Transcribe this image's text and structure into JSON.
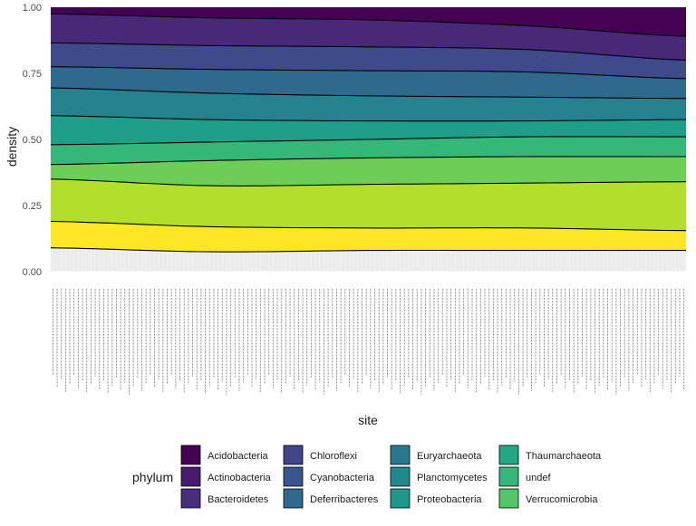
{
  "chart_data": {
    "type": "area",
    "stacked": "fill",
    "xlabel": "site",
    "ylabel": "density",
    "ylim": [
      0,
      1
    ],
    "yticks": [
      0,
      0.25,
      0.5,
      0.75,
      1
    ],
    "ytick_labels": [
      "0.00",
      "0.25",
      "0.50",
      "0.75",
      "1.00"
    ],
    "grid": true,
    "x_tick_labels_legible": false,
    "site_count": 150,
    "legend": {
      "title": "phylum",
      "placement": "bottom",
      "columns": 4,
      "entries": [
        {
          "name": "Acidobacteria",
          "color": "#440154"
        },
        {
          "name": "Actinobacteria",
          "color": "#481A6C"
        },
        {
          "name": "Bacteroidetes",
          "color": "#472F7D"
        },
        {
          "name": "Chloroflexi",
          "color": "#414487"
        },
        {
          "name": "Cyanobacteria",
          "color": "#39568C"
        },
        {
          "name": "Deferribacteres",
          "color": "#31688E"
        },
        {
          "name": "Euryarchaeota",
          "color": "#2A788E"
        },
        {
          "name": "Planctomycetes",
          "color": "#23888E"
        },
        {
          "name": "Proteobacteria",
          "color": "#1F988B"
        },
        {
          "name": "Thaumarchaeota",
          "color": "#22A884"
        },
        {
          "name": "undef",
          "color": "#35B779"
        },
        {
          "name": "Verrucomicrobia",
          "color": "#54C568"
        }
      ]
    },
    "layer_colors_bottom_to_top": [
      "#FDE725",
      "#B4DE2C",
      "#6DCD59",
      "#35B779",
      "#1F9E89",
      "#26828E",
      "#31688E",
      "#3E4A89",
      "#482878",
      "#440154"
    ],
    "boundaries_top_to_bottom": [
      {
        "at": [
          0,
          0.25,
          0.5,
          0.75,
          1
        ],
        "y": [
          0.975,
          0.96,
          0.952,
          0.93,
          0.89
        ]
      },
      {
        "at": [
          0,
          0.25,
          0.5,
          0.75,
          1
        ],
        "y": [
          0.865,
          0.855,
          0.85,
          0.84,
          0.8
        ]
      },
      {
        "at": [
          0,
          0.25,
          0.5,
          0.75,
          1
        ],
        "y": [
          0.775,
          0.765,
          0.76,
          0.755,
          0.73
        ]
      },
      {
        "at": [
          0,
          0.25,
          0.5,
          0.75,
          1
        ],
        "y": [
          0.695,
          0.675,
          0.665,
          0.66,
          0.655
        ]
      },
      {
        "at": [
          0,
          0.25,
          0.5,
          0.75,
          1
        ],
        "y": [
          0.59,
          0.575,
          0.57,
          0.57,
          0.575
        ]
      },
      {
        "at": [
          0,
          0.25,
          0.5,
          0.75,
          1
        ],
        "y": [
          0.48,
          0.49,
          0.5,
          0.51,
          0.51
        ]
      },
      {
        "at": [
          0,
          0.25,
          0.5,
          0.75,
          1
        ],
        "y": [
          0.405,
          0.42,
          0.43,
          0.435,
          0.435
        ]
      },
      {
        "at": [
          0,
          0.25,
          0.5,
          0.75,
          1
        ],
        "y": [
          0.35,
          0.325,
          0.33,
          0.335,
          0.34
        ]
      },
      {
        "at": [
          0,
          0.25,
          0.5,
          0.75,
          1
        ],
        "y": [
          0.19,
          0.17,
          0.165,
          0.165,
          0.155
        ]
      },
      {
        "at": [
          0,
          0.25,
          0.5,
          0.75,
          1
        ],
        "y": [
          0.09,
          0.075,
          0.08,
          0.08,
          0.08
        ]
      }
    ]
  }
}
